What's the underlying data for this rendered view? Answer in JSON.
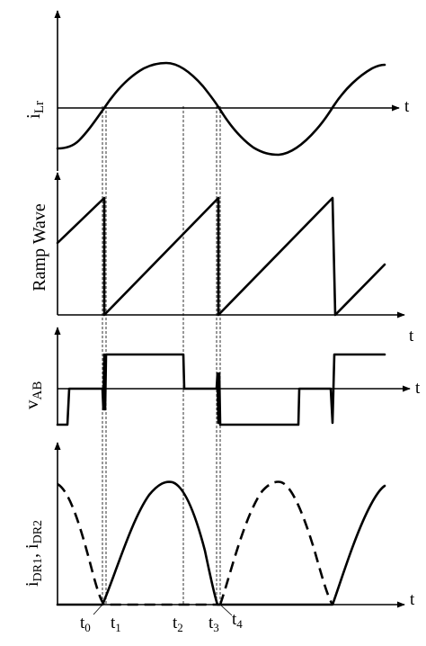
{
  "panels": {
    "current": {
      "ylabel": "i",
      "ylabel_sub": "Lr",
      "xlabel": "t"
    },
    "ramp": {
      "ylabel": "Ramp Wave",
      "xlabel": "t"
    },
    "voltage": {
      "ylabel": "v",
      "ylabel_sub": "AB",
      "xlabel": "t"
    },
    "diode": {
      "ylabel_a": "i",
      "ylabel_a_sub": "DR1",
      "ylabel_sep": ", ",
      "ylabel_b": "i",
      "ylabel_b_sub": "DR2",
      "xlabel": "t"
    }
  },
  "time_marks": [
    {
      "name": "t",
      "sub": "0"
    },
    {
      "name": "t",
      "sub": "1"
    },
    {
      "name": "t",
      "sub": "2"
    },
    {
      "name": "t",
      "sub": "3"
    },
    {
      "name": "t",
      "sub": "4"
    }
  ],
  "line_color": "#000000",
  "background": "#ffffff"
}
